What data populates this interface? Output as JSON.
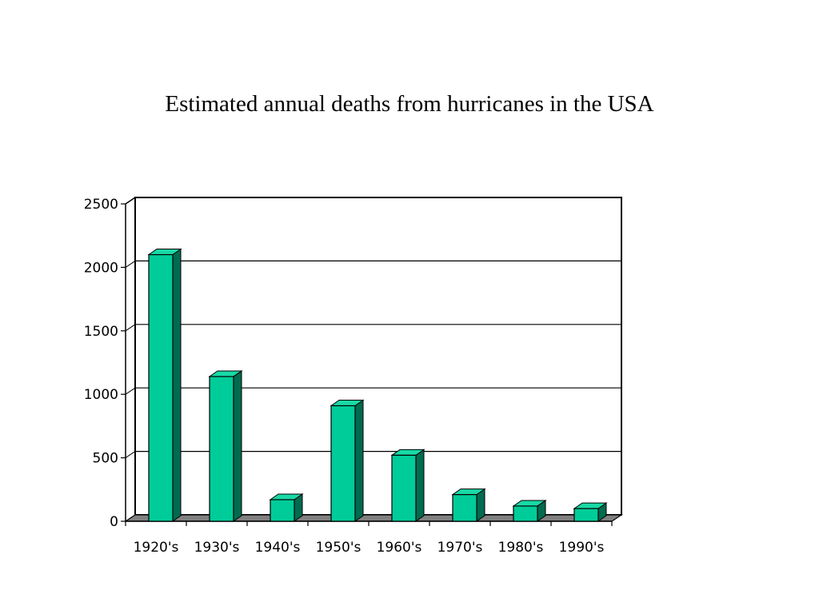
{
  "colors": {
    "bar_front": "#00cc99",
    "bar_side": "#006b4f",
    "bar_top": "#19d9a6",
    "floor": "#808080",
    "gridline": "#000000"
  },
  "chart_data": {
    "type": "bar",
    "title": "Estimated annual deaths from hurricanes in the USA",
    "xlabel": "",
    "ylabel": "",
    "categories": [
      "1920's",
      "1930's",
      "1940's",
      "1950's",
      "1960's",
      "1970's",
      "1980's",
      "1990's"
    ],
    "values": [
      2100,
      1140,
      170,
      910,
      520,
      210,
      120,
      100
    ],
    "ylim": [
      0,
      2500
    ],
    "yticks": [
      0,
      500,
      1000,
      1500,
      2000,
      2500
    ],
    "grid": true,
    "legend": "none",
    "style": "3d"
  }
}
